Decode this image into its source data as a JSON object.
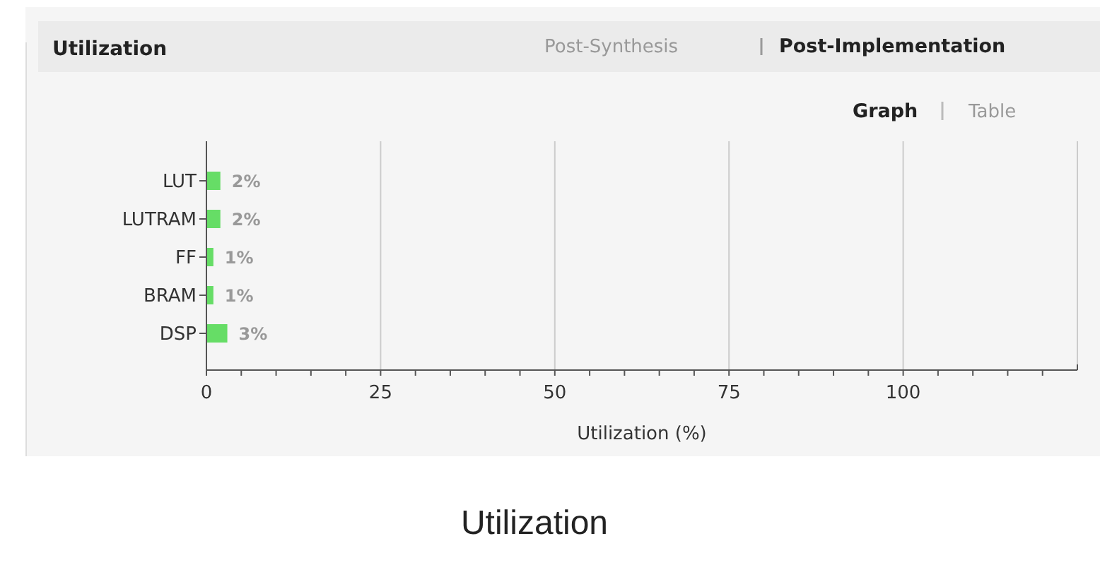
{
  "chart_data": {
    "type": "bar",
    "orientation": "horizontal",
    "title": "Utilization",
    "xlabel": "Utilization (%)",
    "categories": [
      "LUT",
      "LUTRAM",
      "FF",
      "BRAM",
      "DSP"
    ],
    "values": [
      2,
      2,
      1,
      1,
      3
    ],
    "value_labels": [
      "2%",
      "2%",
      "1%",
      "1%",
      "3%"
    ],
    "color": "#66dd66",
    "xlim": [
      0,
      125
    ],
    "xticks": [
      0,
      {
        "value": 5,
        "label": null
      },
      {
        "value": 10,
        "label": null
      },
      {
        "value": 15,
        "label": null
      },
      {
        "value": 20,
        "label": null
      },
      25,
      {
        "value": 30,
        "label": null
      },
      {
        "value": 35,
        "label": null
      },
      {
        "value": 40,
        "label": null
      },
      {
        "value": 45,
        "label": null
      },
      50,
      {
        "value": 55,
        "label": null
      },
      {
        "value": 60,
        "label": null
      },
      {
        "value": 65,
        "label": null
      },
      {
        "value": 70,
        "label": null
      },
      75,
      {
        "value": 80,
        "label": null
      },
      {
        "value": 85,
        "label": null
      },
      {
        "value": 90,
        "label": null
      },
      {
        "value": 95,
        "label": null
      },
      100,
      {
        "value": 105,
        "label": null
      },
      {
        "value": 110,
        "label": null
      },
      {
        "value": 115,
        "label": null
      },
      {
        "value": 120,
        "label": null
      }
    ],
    "grid": "x",
    "annotations": [
      "Post-Synthesis",
      "Post-Implementation",
      "Graph",
      "Table",
      "Utilization"
    ]
  }
}
